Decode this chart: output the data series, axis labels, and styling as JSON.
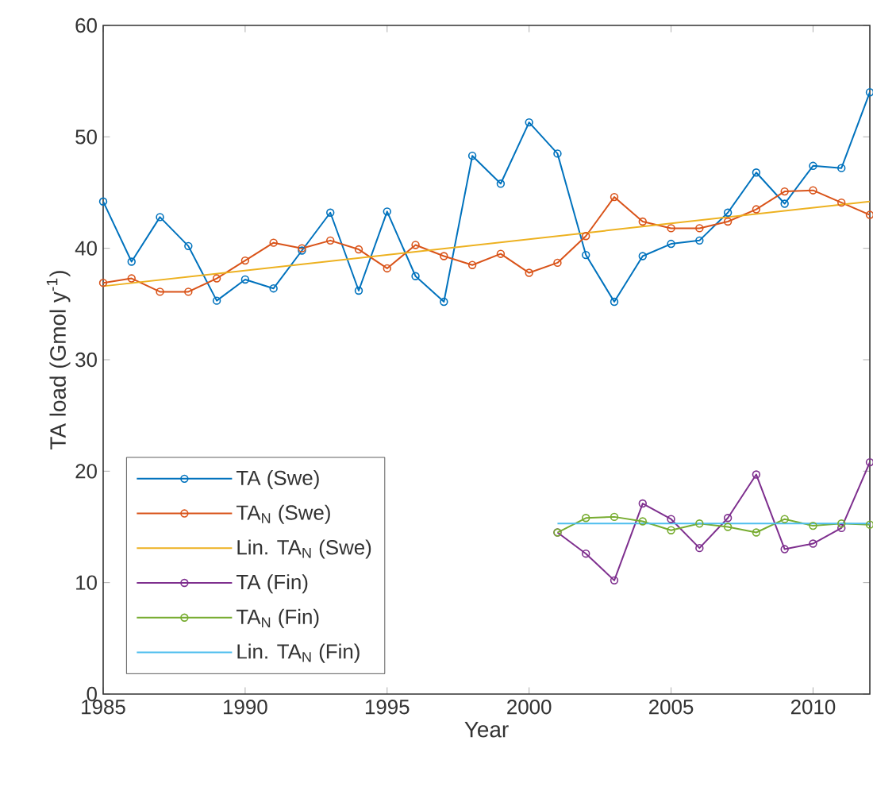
{
  "chart_data": {
    "type": "line",
    "xlabel": "Year",
    "ylabel": "TA load (Gmol y$^{-1}$)",
    "xlim": [
      1985,
      2012
    ],
    "ylim": [
      0,
      60
    ],
    "xticks": [
      1985,
      1990,
      1995,
      2000,
      2005,
      2010
    ],
    "yticks": [
      0,
      10,
      20,
      30,
      40,
      50,
      60
    ],
    "grid": false,
    "legend": "bottom left",
    "line_style": "solid",
    "series": [
      {
        "name": "TA (Swe)",
        "color": "#0072bd",
        "marker": "circle",
        "x": [
          1985,
          1986,
          1987,
          1988,
          1989,
          1990,
          1991,
          1992,
          1993,
          1994,
          1995,
          1996,
          1997,
          1998,
          1999,
          2000,
          2001,
          2002,
          2003,
          2004,
          2005,
          2006,
          2007,
          2008,
          2009,
          2010,
          2011,
          2012
        ],
        "values": [
          44.2,
          38.8,
          42.8,
          40.2,
          35.3,
          37.2,
          36.4,
          39.8,
          43.2,
          36.2,
          43.3,
          37.5,
          35.2,
          48.3,
          45.8,
          51.3,
          48.5,
          39.4,
          35.2,
          39.3,
          40.4,
          40.7,
          43.2,
          46.8,
          44.0,
          47.4,
          47.2,
          54.0
        ]
      },
      {
        "name": "TA$_{N}$ (Swe)",
        "color": "#d95319",
        "marker": "circle",
        "x": [
          1985,
          1986,
          1987,
          1988,
          1989,
          1990,
          1991,
          1992,
          1993,
          1994,
          1995,
          1996,
          1997,
          1998,
          1999,
          2000,
          2001,
          2002,
          2003,
          2004,
          2005,
          2006,
          2007,
          2008,
          2009,
          2010,
          2011,
          2012
        ],
        "values": [
          36.9,
          37.3,
          36.1,
          36.1,
          37.3,
          38.9,
          40.5,
          40.0,
          40.7,
          39.9,
          38.2,
          40.3,
          39.3,
          38.5,
          39.5,
          37.8,
          38.7,
          41.1,
          44.6,
          42.4,
          41.8,
          41.8,
          42.4,
          43.5,
          45.1,
          45.2,
          44.1,
          43.0
        ]
      },
      {
        "name": "Lin. TA$_{N}$ (Swe)",
        "color": "#edb120",
        "marker": "none",
        "x": [
          1985,
          2012
        ],
        "values": [
          36.6,
          44.2
        ]
      },
      {
        "name": "TA (Fin)",
        "color": "#7e2f8e",
        "marker": "circle",
        "x": [
          2001,
          2002,
          2003,
          2004,
          2005,
          2006,
          2007,
          2008,
          2009,
          2010,
          2011,
          2012
        ],
        "values": [
          14.5,
          12.6,
          10.2,
          17.1,
          15.7,
          13.1,
          15.8,
          19.7,
          13.0,
          13.5,
          14.9,
          20.8
        ]
      },
      {
        "name": "TA$_{N}$ (Fin)",
        "color": "#77ac30",
        "marker": "circle",
        "x": [
          2001,
          2002,
          2003,
          2004,
          2005,
          2006,
          2007,
          2008,
          2009,
          2010,
          2011,
          2012
        ],
        "values": [
          14.5,
          15.8,
          15.9,
          15.5,
          14.7,
          15.3,
          15.0,
          14.5,
          15.7,
          15.1,
          15.3,
          15.2
        ]
      },
      {
        "name": "Lin. TA$_{N}$ (Fin)",
        "color": "#4dbeee",
        "marker": "none",
        "x": [
          2001,
          2012
        ],
        "values": [
          15.3,
          15.3
        ]
      }
    ]
  }
}
